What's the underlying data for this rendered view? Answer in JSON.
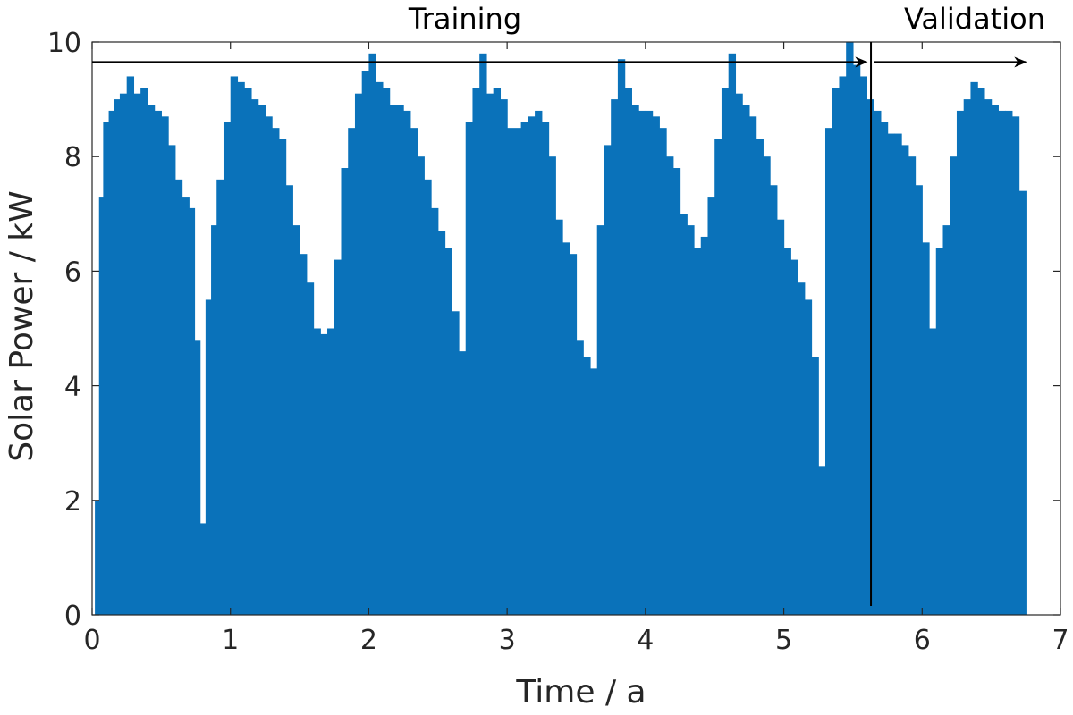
{
  "chart_data": {
    "type": "bar",
    "xlabel": "Time / a",
    "ylabel": "Solar Power / kW",
    "xlim": [
      0,
      7
    ],
    "ylim": [
      0,
      10
    ],
    "xticks": [
      0,
      1,
      2,
      3,
      4,
      5,
      6,
      7
    ],
    "yticks": [
      0,
      2,
      4,
      6,
      8,
      10
    ],
    "grid": false,
    "series_color": "#0a72ba",
    "series": [
      {
        "x": [
          0.02,
          0.05,
          0.08,
          0.12,
          0.16,
          0.2,
          0.25,
          0.3,
          0.35,
          0.4,
          0.45,
          0.5,
          0.55,
          0.6,
          0.65,
          0.7,
          0.74,
          0.78,
          0.82,
          0.86,
          0.9,
          0.95,
          1.0,
          1.05,
          1.1,
          1.15,
          1.2,
          1.25,
          1.3,
          1.35,
          1.4,
          1.45,
          1.5,
          1.55,
          1.6,
          1.65,
          1.7,
          1.75,
          1.8,
          1.85,
          1.9,
          1.95,
          2.0,
          2.05,
          2.1,
          2.15,
          2.2,
          2.25,
          2.3,
          2.35,
          2.4,
          2.45,
          2.5,
          2.55,
          2.6,
          2.65,
          2.7,
          2.75,
          2.8,
          2.85,
          2.9,
          2.95,
          3.0,
          3.1,
          3.15,
          3.2,
          3.25,
          3.3,
          3.35,
          3.4,
          3.45,
          3.5,
          3.55,
          3.6,
          3.65,
          3.7,
          3.75,
          3.8,
          3.85,
          3.9,
          3.95,
          4.0,
          4.05,
          4.1,
          4.15,
          4.2,
          4.25,
          4.3,
          4.35,
          4.4,
          4.45,
          4.5,
          4.55,
          4.6,
          4.65,
          4.7,
          4.75,
          4.8,
          4.85,
          4.9,
          4.95,
          5.0,
          5.05,
          5.1,
          5.15,
          5.2,
          5.25,
          5.3,
          5.35,
          5.4,
          5.45,
          5.5,
          5.55,
          5.6,
          5.65,
          5.7,
          5.75,
          5.8,
          5.85,
          5.9,
          5.95,
          6.0,
          6.05,
          6.1,
          6.15,
          6.2,
          6.25,
          6.3,
          6.35,
          6.4,
          6.45,
          6.5,
          6.55,
          6.6,
          6.65,
          6.7
        ],
        "values": [
          2.0,
          7.3,
          8.6,
          8.8,
          9.0,
          9.1,
          9.4,
          9.1,
          9.2,
          8.9,
          8.8,
          8.7,
          8.2,
          7.6,
          7.3,
          7.1,
          4.8,
          1.6,
          5.5,
          6.8,
          7.6,
          8.6,
          9.4,
          9.3,
          9.2,
          9.0,
          8.9,
          8.7,
          8.5,
          8.3,
          7.5,
          6.8,
          6.3,
          5.8,
          5.0,
          4.9,
          5.0,
          6.2,
          7.8,
          8.5,
          9.1,
          9.5,
          9.8,
          9.3,
          9.2,
          8.9,
          8.9,
          8.8,
          8.5,
          8.0,
          7.6,
          7.1,
          6.7,
          6.4,
          5.3,
          4.6,
          8.6,
          9.2,
          9.8,
          9.1,
          9.2,
          9.0,
          8.5,
          8.6,
          8.7,
          8.8,
          8.6,
          8.0,
          6.9,
          6.5,
          6.3,
          4.8,
          4.5,
          4.3,
          6.8,
          8.2,
          9.0,
          9.7,
          9.2,
          8.9,
          8.8,
          8.8,
          8.7,
          8.5,
          8.0,
          7.8,
          7.0,
          6.8,
          6.4,
          6.6,
          7.3,
          8.3,
          9.2,
          9.8,
          9.1,
          8.9,
          8.7,
          8.3,
          8.0,
          7.5,
          6.9,
          6.4,
          6.2,
          5.8,
          5.5,
          4.5,
          2.6,
          8.5,
          9.2,
          9.4,
          10.0,
          9.6,
          9.4,
          9.0,
          8.8,
          8.6,
          8.4,
          8.4,
          8.2,
          8.0,
          7.5,
          6.5,
          5.0,
          6.4,
          6.8,
          8.0,
          8.8,
          9.0,
          9.3,
          9.2,
          9.0,
          8.9,
          8.8,
          8.8,
          8.7,
          7.4
        ]
      }
    ],
    "annotations": [
      {
        "text": "Training",
        "x_start": 0,
        "x_end": 5.6,
        "y": 9.65
      },
      {
        "text": "Validation",
        "x_start": 5.65,
        "x_end": 6.75,
        "y": 9.65
      }
    ],
    "split_line_x": 5.63
  }
}
